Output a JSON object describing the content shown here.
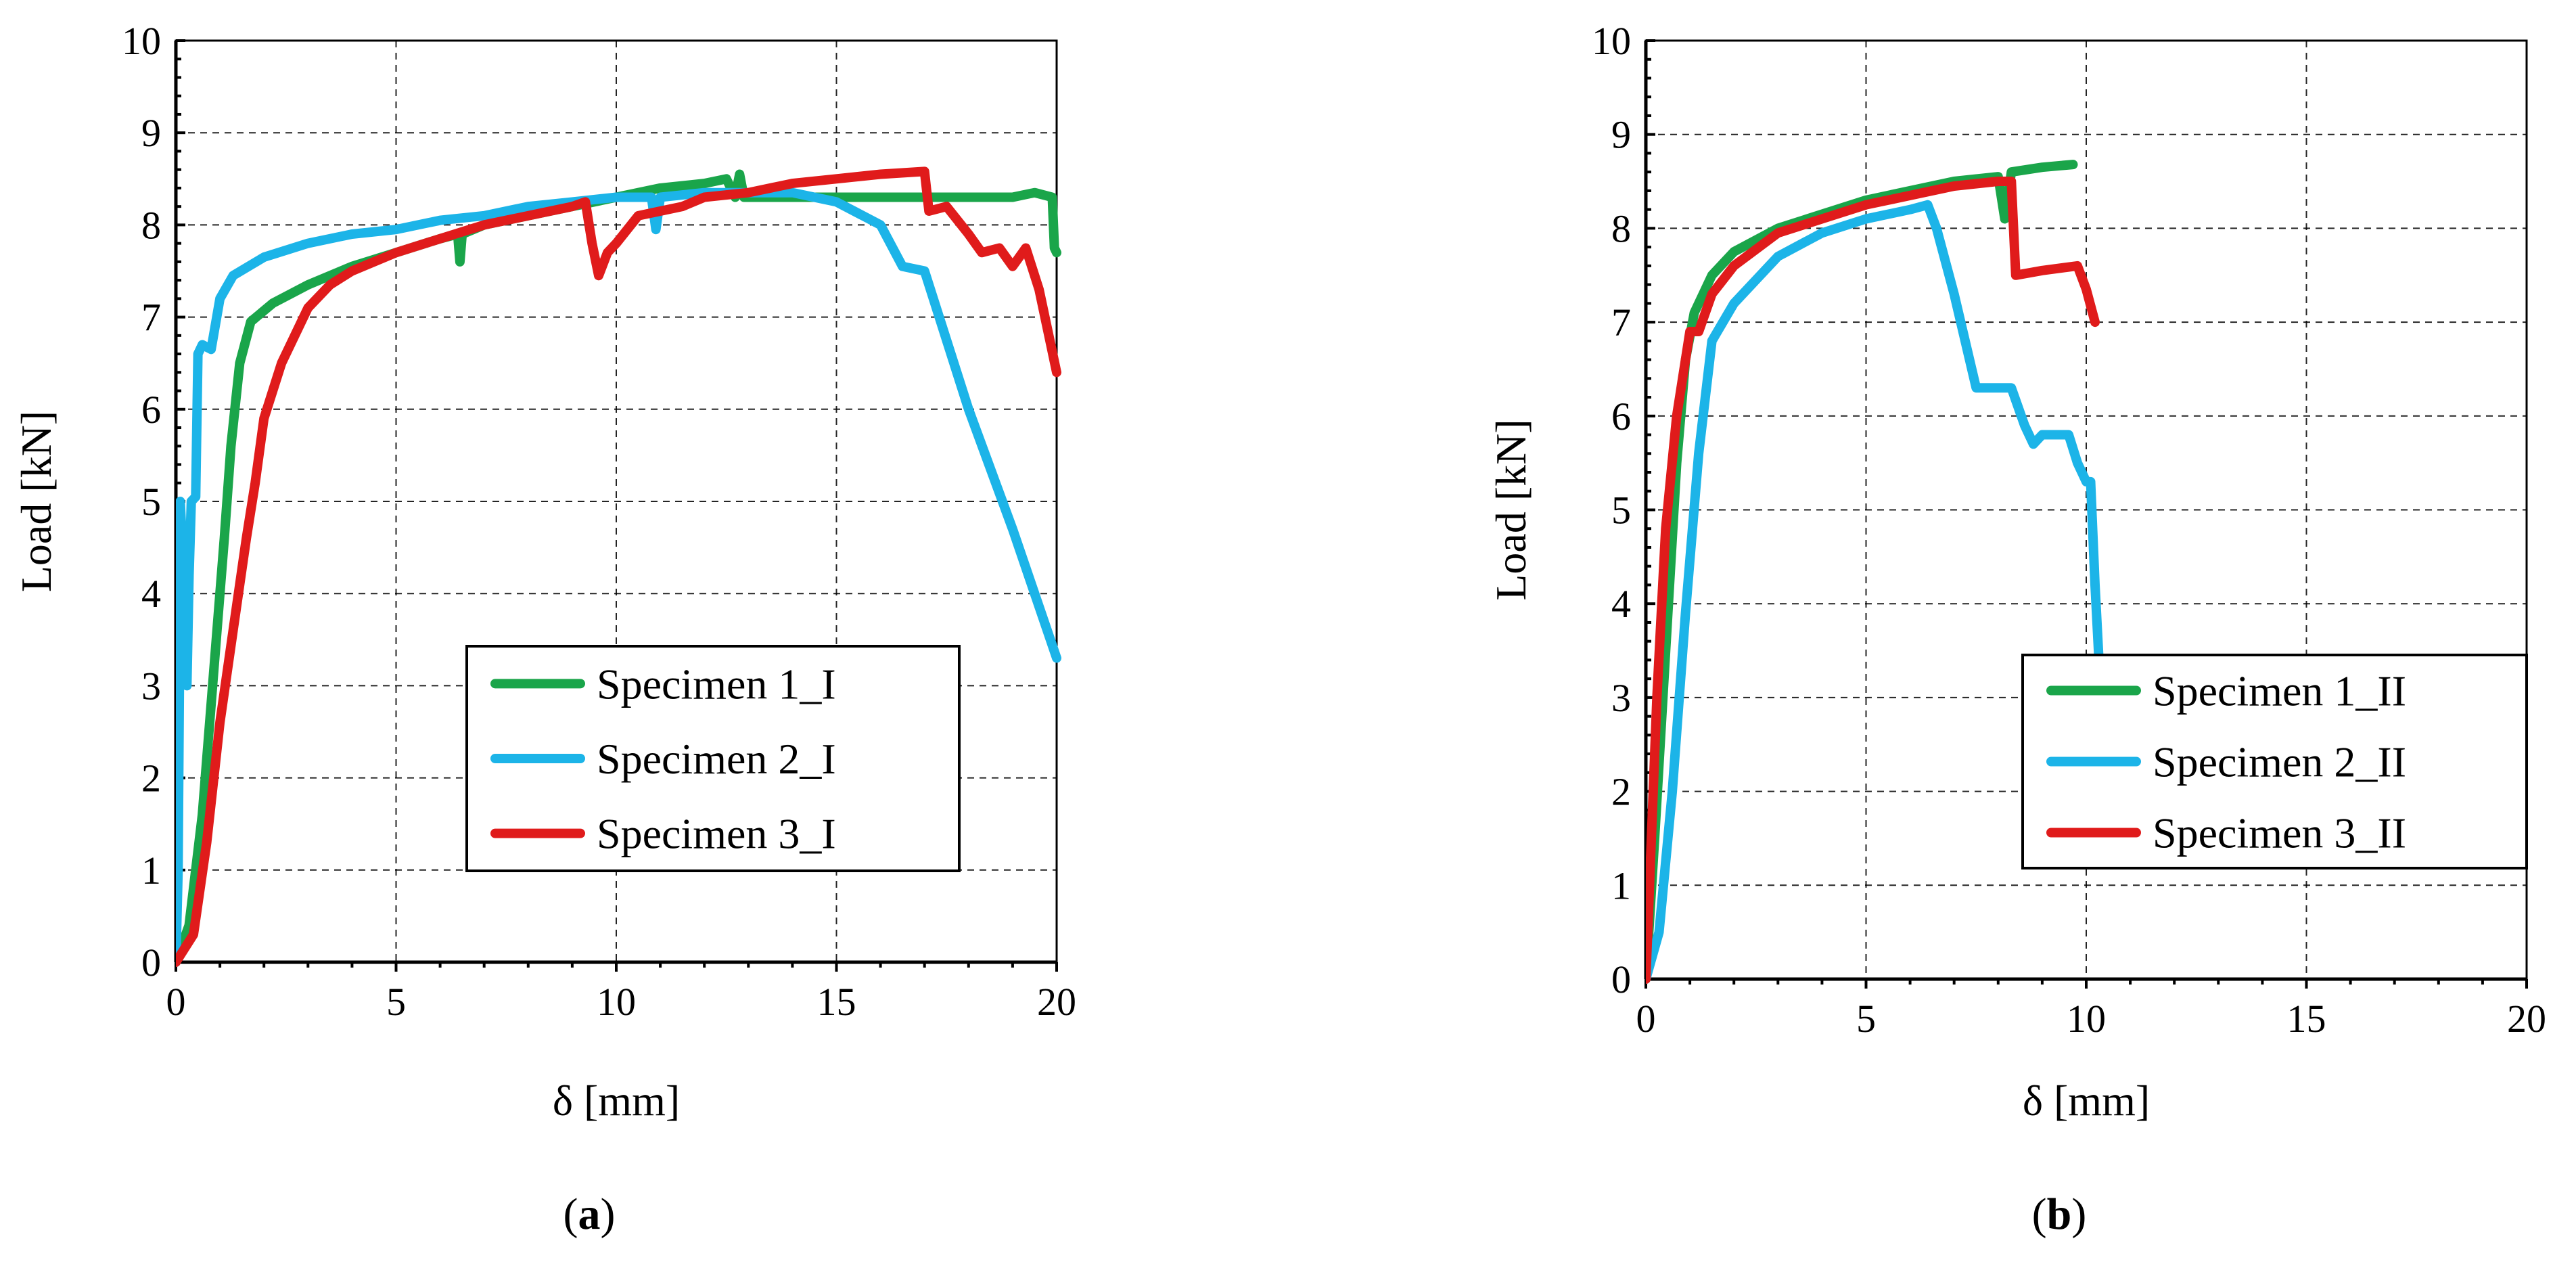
{
  "chart_data": [
    {
      "type": "line",
      "panel_label": "a",
      "xlabel": "δ [mm]",
      "ylabel": "Load [kN]",
      "xlim": [
        0,
        20
      ],
      "ylim": [
        0,
        10
      ],
      "xticks": [
        0,
        5,
        10,
        15,
        20
      ],
      "yticks": [
        0,
        1,
        2,
        3,
        4,
        5,
        6,
        7,
        8,
        9,
        10
      ],
      "grid": true,
      "legend_position": "bottom-right",
      "series": [
        {
          "name": "Specimen 1_I",
          "color": "#1aa54a",
          "points": [
            [
              0,
              0
            ],
            [
              0.3,
              0.4
            ],
            [
              0.6,
              1.6
            ],
            [
              0.9,
              3.4
            ],
            [
              1.1,
              4.6
            ],
            [
              1.25,
              5.6
            ],
            [
              1.45,
              6.5
            ],
            [
              1.7,
              6.95
            ],
            [
              2.2,
              7.15
            ],
            [
              3,
              7.35
            ],
            [
              4,
              7.55
            ],
            [
              5,
              7.7
            ],
            [
              6,
              7.85
            ],
            [
              6.4,
              7.9
            ],
            [
              6.45,
              7.6
            ],
            [
              6.5,
              7.9
            ],
            [
              7,
              8
            ],
            [
              8,
              8.1
            ],
            [
              9,
              8.2
            ],
            [
              10,
              8.3
            ],
            [
              11,
              8.4
            ],
            [
              12,
              8.45
            ],
            [
              12.5,
              8.5
            ],
            [
              12.7,
              8.3
            ],
            [
              12.8,
              8.55
            ],
            [
              12.9,
              8.3
            ],
            [
              15,
              8.3
            ],
            [
              17,
              8.3
            ],
            [
              19,
              8.3
            ],
            [
              19.5,
              8.35
            ],
            [
              19.9,
              8.3
            ],
            [
              19.95,
              7.75
            ],
            [
              20,
              7.7
            ]
          ]
        },
        {
          "name": "Specimen 2_I",
          "color": "#1cb4e8",
          "points": [
            [
              0,
              0
            ],
            [
              0.05,
              1
            ],
            [
              0.08,
              3
            ],
            [
              0.1,
              5
            ],
            [
              0.12,
              4.8
            ],
            [
              0.2,
              3.8
            ],
            [
              0.25,
              3
            ],
            [
              0.3,
              4.2
            ],
            [
              0.35,
              5
            ],
            [
              0.45,
              5.05
            ],
            [
              0.5,
              6.6
            ],
            [
              0.6,
              6.7
            ],
            [
              0.8,
              6.65
            ],
            [
              1,
              7.2
            ],
            [
              1.3,
              7.45
            ],
            [
              2,
              7.65
            ],
            [
              3,
              7.8
            ],
            [
              4,
              7.9
            ],
            [
              5,
              7.95
            ],
            [
              6,
              8.05
            ],
            [
              7,
              8.1
            ],
            [
              8,
              8.2
            ],
            [
              9,
              8.25
            ],
            [
              10,
              8.3
            ],
            [
              10.8,
              8.3
            ],
            [
              10.9,
              7.95
            ],
            [
              11,
              8.3
            ],
            [
              12,
              8.35
            ],
            [
              13,
              8.35
            ],
            [
              14,
              8.35
            ],
            [
              15,
              8.25
            ],
            [
              16,
              8
            ],
            [
              16.5,
              7.55
            ],
            [
              17,
              7.5
            ],
            [
              18,
              6
            ],
            [
              19,
              4.7
            ],
            [
              20,
              3.3
            ]
          ]
        },
        {
          "name": "Specimen 3_I",
          "color": "#e01b1b",
          "points": [
            [
              0,
              0
            ],
            [
              0.4,
              0.3
            ],
            [
              0.7,
              1.3
            ],
            [
              1,
              2.6
            ],
            [
              1.3,
              3.6
            ],
            [
              1.6,
              4.6
            ],
            [
              1.8,
              5.2
            ],
            [
              2,
              5.9
            ],
            [
              2.4,
              6.5
            ],
            [
              3,
              7.1
            ],
            [
              3.5,
              7.35
            ],
            [
              4,
              7.5
            ],
            [
              5,
              7.7
            ],
            [
              6,
              7.85
            ],
            [
              7,
              8
            ],
            [
              8,
              8.1
            ],
            [
              9,
              8.2
            ],
            [
              9.3,
              8.25
            ],
            [
              9.45,
              7.8
            ],
            [
              9.6,
              7.45
            ],
            [
              9.8,
              7.7
            ],
            [
              10,
              7.8
            ],
            [
              10.5,
              8.1
            ],
            [
              11,
              8.15
            ],
            [
              11.5,
              8.2
            ],
            [
              12,
              8.3
            ],
            [
              13,
              8.35
            ],
            [
              14,
              8.45
            ],
            [
              15,
              8.5
            ],
            [
              16,
              8.55
            ],
            [
              17,
              8.58
            ],
            [
              17.1,
              8.15
            ],
            [
              17.5,
              8.2
            ],
            [
              18,
              7.9
            ],
            [
              18.3,
              7.7
            ],
            [
              18.7,
              7.75
            ],
            [
              19,
              7.55
            ],
            [
              19.3,
              7.75
            ],
            [
              19.6,
              7.3
            ],
            [
              20,
              6.4
            ]
          ]
        }
      ]
    },
    {
      "type": "line",
      "panel_label": "b",
      "xlabel": "δ [mm]",
      "ylabel": "Load [kN]",
      "xlim": [
        0,
        20
      ],
      "ylim": [
        0,
        10
      ],
      "xticks": [
        0,
        5,
        10,
        15,
        20
      ],
      "yticks": [
        0,
        1,
        2,
        3,
        4,
        5,
        6,
        7,
        8,
        9,
        10
      ],
      "grid": true,
      "legend_position": "bottom-right",
      "series": [
        {
          "name": "Specimen 1_II",
          "color": "#1aa54a",
          "points": [
            [
              0,
              0
            ],
            [
              0.2,
              1.5
            ],
            [
              0.45,
              3.5
            ],
            [
              0.7,
              5.5
            ],
            [
              0.9,
              6.6
            ],
            [
              1.1,
              7.1
            ],
            [
              1.5,
              7.5
            ],
            [
              2,
              7.75
            ],
            [
              3,
              8
            ],
            [
              4,
              8.15
            ],
            [
              5,
              8.3
            ],
            [
              6,
              8.4
            ],
            [
              7,
              8.5
            ],
            [
              8,
              8.55
            ],
            [
              8.15,
              8.1
            ],
            [
              8.3,
              8.6
            ],
            [
              9,
              8.65
            ],
            [
              9.7,
              8.68
            ]
          ]
        },
        {
          "name": "Specimen 2_II",
          "color": "#1cb4e8",
          "points": [
            [
              0,
              0
            ],
            [
              0.3,
              0.5
            ],
            [
              0.6,
              2
            ],
            [
              0.9,
              3.9
            ],
            [
              1.2,
              5.6
            ],
            [
              1.5,
              6.8
            ],
            [
              2,
              7.2
            ],
            [
              3,
              7.7
            ],
            [
              4,
              7.95
            ],
            [
              5,
              8.1
            ],
            [
              6,
              8.2
            ],
            [
              6.4,
              8.25
            ],
            [
              6.6,
              8
            ],
            [
              7,
              7.3
            ],
            [
              7.5,
              6.3
            ],
            [
              8,
              6.3
            ],
            [
              8.3,
              6.3
            ],
            [
              8.6,
              5.9
            ],
            [
              8.8,
              5.7
            ],
            [
              9,
              5.8
            ],
            [
              9.6,
              5.8
            ],
            [
              9.8,
              5.5
            ],
            [
              10,
              5.3
            ],
            [
              10.1,
              5.3
            ],
            [
              10.2,
              4.2
            ],
            [
              10.3,
              3.3
            ]
          ]
        },
        {
          "name": "Specimen 3_II",
          "color": "#e01b1b",
          "points": [
            [
              0,
              0
            ],
            [
              0.1,
              1.2
            ],
            [
              0.25,
              3
            ],
            [
              0.45,
              4.8
            ],
            [
              0.7,
              6
            ],
            [
              1,
              6.9
            ],
            [
              1.2,
              6.9
            ],
            [
              1.5,
              7.3
            ],
            [
              2,
              7.6
            ],
            [
              3,
              7.95
            ],
            [
              4,
              8.1
            ],
            [
              5,
              8.25
            ],
            [
              6,
              8.35
            ],
            [
              7,
              8.45
            ],
            [
              8,
              8.5
            ],
            [
              8.3,
              8.5
            ],
            [
              8.4,
              7.5
            ],
            [
              9,
              7.55
            ],
            [
              9.8,
              7.6
            ],
            [
              10,
              7.35
            ],
            [
              10.2,
              7
            ]
          ]
        }
      ]
    }
  ]
}
